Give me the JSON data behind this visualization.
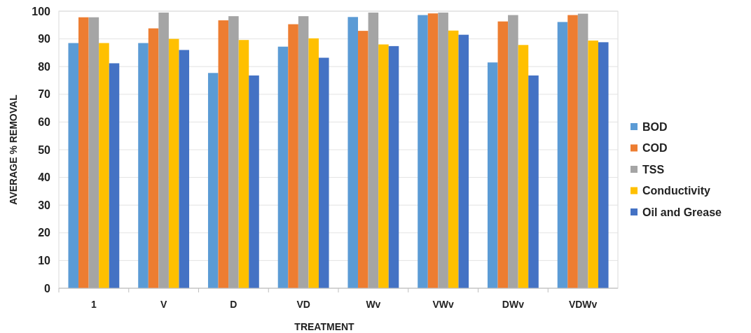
{
  "chart_data": {
    "type": "bar",
    "xlabel": "TREATMENT",
    "ylabel": "AVERAGE % REMOVAL",
    "categories": [
      "1",
      "V",
      "D",
      "VD",
      "Wv",
      "VWv",
      "DWv",
      "VDWv"
    ],
    "series": [
      {
        "name": "BOD",
        "color": "#5b9bd5",
        "values": [
          88.5,
          88.5,
          77.7,
          87.2,
          97.9,
          98.6,
          81.5,
          96.1
        ]
      },
      {
        "name": "COD",
        "color": "#ed7d31",
        "values": [
          97.8,
          93.8,
          96.7,
          95.3,
          92.9,
          99.2,
          96.3,
          98.6
        ]
      },
      {
        "name": "TSS",
        "color": "#a5a5a5",
        "values": [
          97.8,
          99.5,
          98.2,
          98.2,
          99.5,
          99.5,
          98.6,
          99.1
        ]
      },
      {
        "name": "Conductivity",
        "color": "#ffc000",
        "values": [
          88.5,
          90,
          89.6,
          90.2,
          88,
          93,
          87.8,
          89.4
        ]
      },
      {
        "name": "Oil and Grease",
        "color": "#4472c4",
        "values": [
          81.2,
          86,
          76.8,
          83.2,
          87.4,
          91.5,
          76.8,
          88.8
        ]
      }
    ],
    "ylim": [
      0,
      100
    ],
    "yticks": [
      0,
      10,
      20,
      30,
      40,
      50,
      60,
      70,
      80,
      90,
      100
    ],
    "grid": "y",
    "legend": "right"
  }
}
